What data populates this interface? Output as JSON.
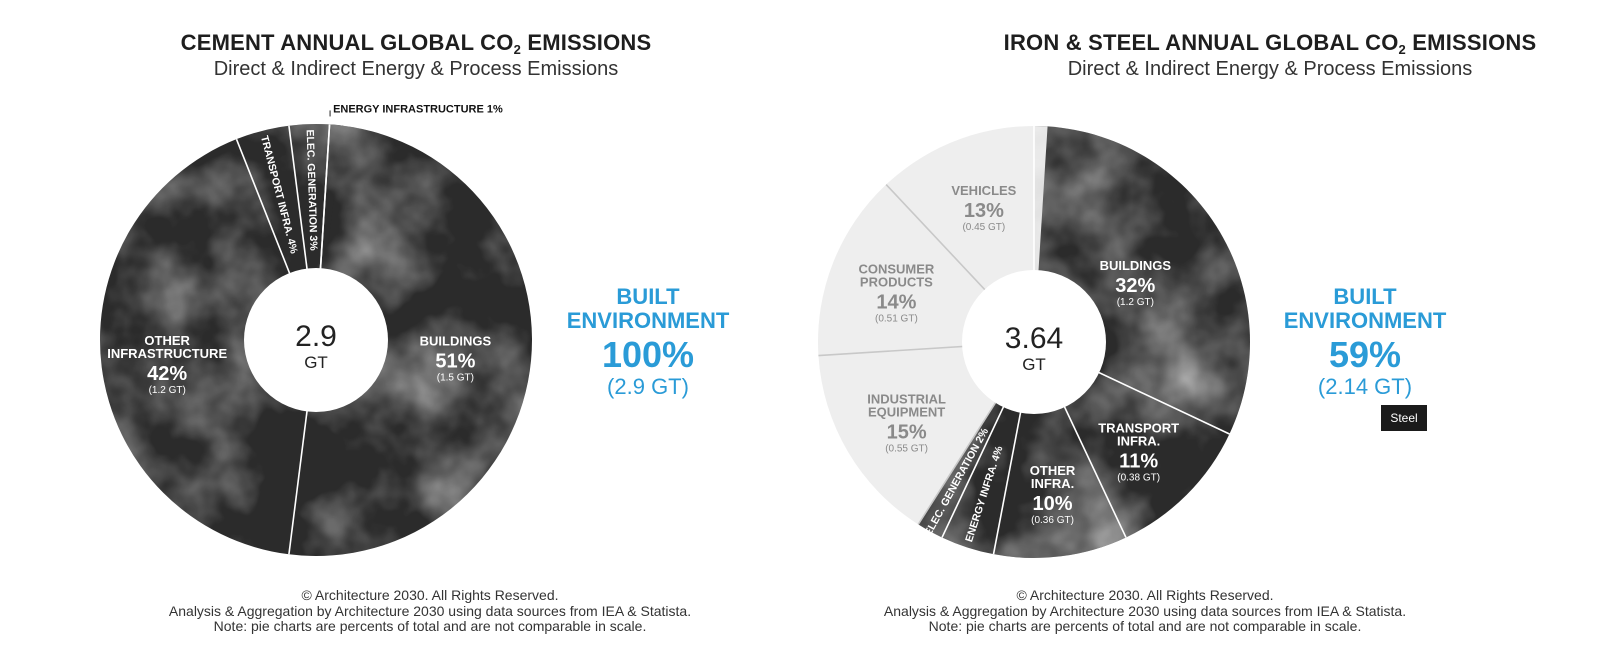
{
  "charts": {
    "cement": {
      "title_main": "CEMENT ANNUAL GLOBAL CO",
      "title_sub": "2",
      "title_tail": " EMISSIONS",
      "subtitle": "Direct & Indirect Energy & Process Emissions",
      "center_value": "2.9",
      "center_unit": "GT",
      "built_label_1": "BUILT",
      "built_label_2": "ENVIRONMENT",
      "built_pct": "100%",
      "built_gt": "(2.9 GT)",
      "footer_1": "© Architecture 2030. All Rights Reserved.",
      "footer_2": "Analysis & Aggregation by Architecture 2030 using data sources from IEA & Statista.",
      "footer_3": "Note: pie charts are percents of total and are not comparable in scale."
    },
    "steel": {
      "title_main": "IRON & STEEL ANNUAL GLOBAL CO",
      "title_sub": "2",
      "title_tail": " EMISSIONS",
      "subtitle": "Direct & Indirect Energy & Process Emissions",
      "center_value": "3.64",
      "center_unit": "GT",
      "built_label_1": "BUILT",
      "built_label_2": "ENVIRONMENT",
      "built_pct": "59%",
      "built_gt": "(2.14 GT)",
      "tag": "Steel",
      "footer_1": "© Architecture 2030. All Rights Reserved.",
      "footer_2": "Analysis & Aggregation by Architecture 2030 using data sources from IEA & Statista.",
      "footer_3": "Note: pie charts are percents of total and are not comparable in scale."
    }
  },
  "colors": {
    "dark": "#2b2b2b",
    "light": "#eeeeee",
    "accent": "#2a9bd7",
    "label_light": "#ffffff",
    "label_dark": "#8a8a8a"
  },
  "chart_data": [
    {
      "type": "pie",
      "title": "CEMENT ANNUAL GLOBAL CO2 EMISSIONS",
      "total": "2.9 GT",
      "slices": [
        {
          "name": "BUILDINGS",
          "percent": 51,
          "pct_label": "51%",
          "value_label": "(1.5 GT)",
          "built": true
        },
        {
          "name": "OTHER INFRASTRUCTURE",
          "name_lines": [
            "OTHER",
            "INFRASTRUCTURE"
          ],
          "percent": 42,
          "pct_label": "42%",
          "value_label": "(1.2 GT)",
          "built": true
        },
        {
          "name": "TRANSPORT INFRA.",
          "percent": 4,
          "pct_label": "4%",
          "value_label": "",
          "built": true
        },
        {
          "name": "ELEC. GENERATION",
          "percent": 3,
          "pct_label": "3%",
          "value_label": "",
          "built": true
        },
        {
          "name": "ENERGY INFRASTRUCTURE",
          "percent": 1,
          "pct_label": "1%",
          "value_label": "",
          "built": true
        }
      ]
    },
    {
      "type": "pie",
      "title": "IRON & STEEL ANNUAL GLOBAL CO2 EMISSIONS",
      "total": "3.64 GT",
      "slices": [
        {
          "name": "BUILDINGS",
          "percent": 32,
          "pct_label": "32%",
          "value_label": "(1.2 GT)",
          "built": true
        },
        {
          "name": "TRANSPORT INFRA.",
          "name_lines": [
            "TRANSPORT",
            "INFRA."
          ],
          "percent": 11,
          "pct_label": "11%",
          "value_label": "(0.38 GT)",
          "built": true
        },
        {
          "name": "OTHER INFRA.",
          "name_lines": [
            "OTHER",
            "INFRA."
          ],
          "percent": 10,
          "pct_label": "10%",
          "value_label": "(0.36 GT)",
          "built": true
        },
        {
          "name": "ENERGY INFRA.",
          "percent": 4,
          "pct_label": "4%",
          "value_label": "",
          "built": true
        },
        {
          "name": "ELEC. GENERATION",
          "percent": 2,
          "pct_label": "2%",
          "value_label": "",
          "built": true
        },
        {
          "name": "INDUSTRIAL EQUIPMENT",
          "name_lines": [
            "INDUSTRIAL",
            "EQUIPMENT"
          ],
          "percent": 15,
          "pct_label": "15%",
          "value_label": "(0.55 GT)",
          "built": false
        },
        {
          "name": "CONSUMER PRODUCTS",
          "name_lines": [
            "CONSUMER",
            "PRODUCTS"
          ],
          "percent": 14,
          "pct_label": "14%",
          "value_label": "(0.51 GT)",
          "built": false
        },
        {
          "name": "VEHICLES",
          "name_lines": [
            "VEHICLES"
          ],
          "percent": 13,
          "pct_label": "13%",
          "value_label": "(0.45 GT)",
          "built": false
        }
      ]
    }
  ]
}
